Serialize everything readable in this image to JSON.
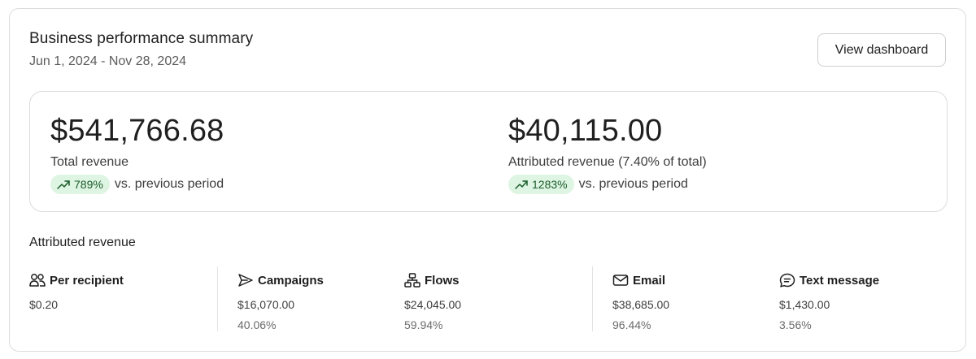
{
  "header": {
    "title": "Business performance summary",
    "date_range": "Jun 1, 2024 - Nov 28, 2024",
    "button_label": "View dashboard"
  },
  "summary": {
    "total": {
      "amount": "$541,766.68",
      "label": "Total revenue",
      "change": "789%",
      "comparison": "vs. previous period"
    },
    "attributed": {
      "amount": "$40,115.00",
      "label": "Attributed revenue (7.40% of total)",
      "change": "1283%",
      "comparison": "vs. previous period"
    }
  },
  "attributed_section": {
    "title": "Attributed revenue",
    "items": [
      {
        "label": "Per recipient",
        "icon": "people-icon",
        "value": "$0.20",
        "percent": ""
      },
      {
        "label": "Campaigns",
        "icon": "send-icon",
        "value": "$16,070.00",
        "percent": "40.06%"
      },
      {
        "label": "Flows",
        "icon": "flow-icon",
        "value": "$24,045.00",
        "percent": "59.94%"
      },
      {
        "label": "Email",
        "icon": "mail-icon",
        "value": "$38,685.00",
        "percent": "96.44%"
      },
      {
        "label": "Text message",
        "icon": "message-icon",
        "value": "$1,430.00",
        "percent": "3.56%"
      }
    ]
  },
  "colors": {
    "trend_pill_bg": "#dff5e3",
    "trend_pill_text": "#1a5c2a",
    "border": "#dcdcdc"
  }
}
